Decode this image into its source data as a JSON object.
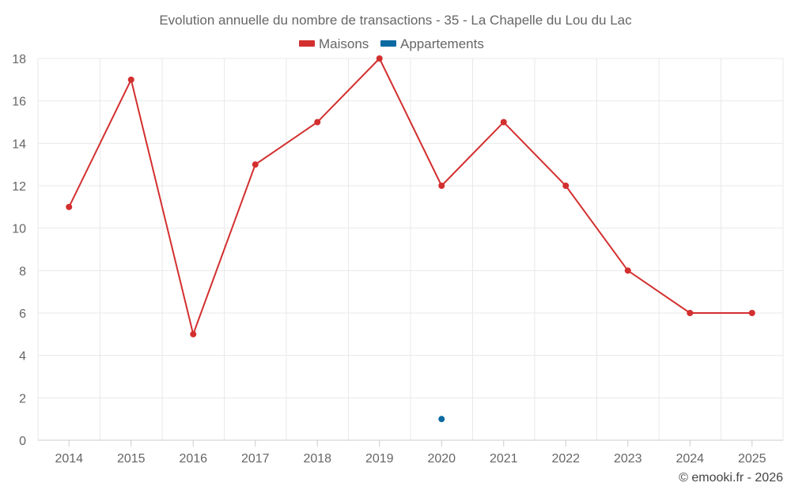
{
  "chart_data": {
    "type": "line",
    "title": "Evolution annuelle du nombre de transactions - 35 - La Chapelle du Lou du Lac",
    "categories": [
      "2014",
      "2015",
      "2016",
      "2017",
      "2018",
      "2019",
      "2020",
      "2021",
      "2022",
      "2023",
      "2024",
      "2025"
    ],
    "series": [
      {
        "name": "Maisons",
        "color": "#d32f2f",
        "values": [
          11,
          17,
          5,
          13,
          15,
          18,
          12,
          15,
          12,
          8,
          6,
          6
        ]
      },
      {
        "name": "Appartements",
        "color": "#0b6aa2",
        "values": [
          null,
          null,
          null,
          null,
          null,
          null,
          1,
          null,
          null,
          null,
          null,
          null
        ]
      }
    ],
    "ylim": [
      0,
      18
    ],
    "yticks": [
      0,
      2,
      4,
      6,
      8,
      10,
      12,
      14,
      16,
      18
    ],
    "xlabel": "",
    "ylabel": "",
    "grid": true,
    "legend_position": "top-center"
  },
  "credit": "© emooki.fr - 2026"
}
